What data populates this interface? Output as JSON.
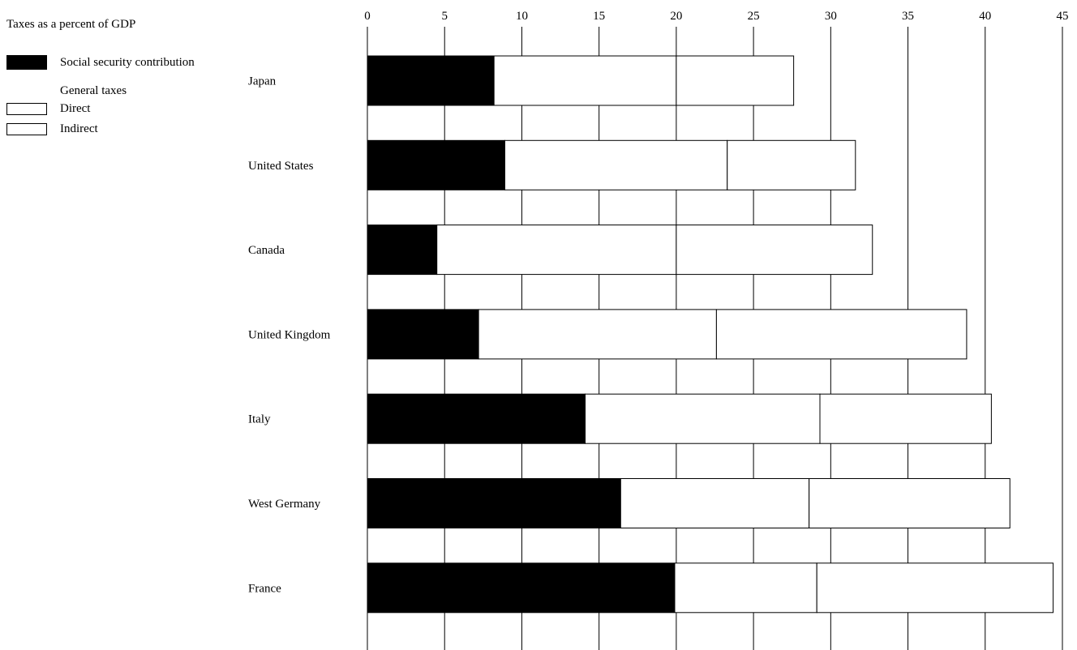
{
  "legend": {
    "title": "Taxes as a percent of GDP",
    "social": "Social security contribution",
    "general_heading": "General taxes",
    "direct": "Direct",
    "indirect": "Indirect"
  },
  "chart_data": {
    "type": "bar",
    "orientation": "horizontal",
    "stacked": true,
    "title": "Taxes as a percent of GDP",
    "xlabel": "",
    "ylabel": "",
    "xlim": [
      0,
      45
    ],
    "xticks": [
      0,
      5,
      10,
      15,
      20,
      25,
      30,
      35,
      40,
      45
    ],
    "grid": true,
    "legend_position": "top-left",
    "categories": [
      "Japan",
      "United States",
      "Canada",
      "United Kingdom",
      "Italy",
      "West Germany",
      "France"
    ],
    "series": [
      {
        "name": "Social security contribution",
        "color": "#000000",
        "values": [
          8.2,
          8.9,
          4.5,
          7.2,
          14.1,
          16.4,
          19.9
        ]
      },
      {
        "name": "Direct",
        "color": "#ffffff",
        "values": [
          11.8,
          14.4,
          15.5,
          15.4,
          15.2,
          12.2,
          9.2
        ]
      },
      {
        "name": "Indirect",
        "color": "#ffffff",
        "values": [
          7.6,
          8.3,
          12.7,
          16.2,
          11.1,
          13.0,
          15.3
        ]
      }
    ]
  }
}
